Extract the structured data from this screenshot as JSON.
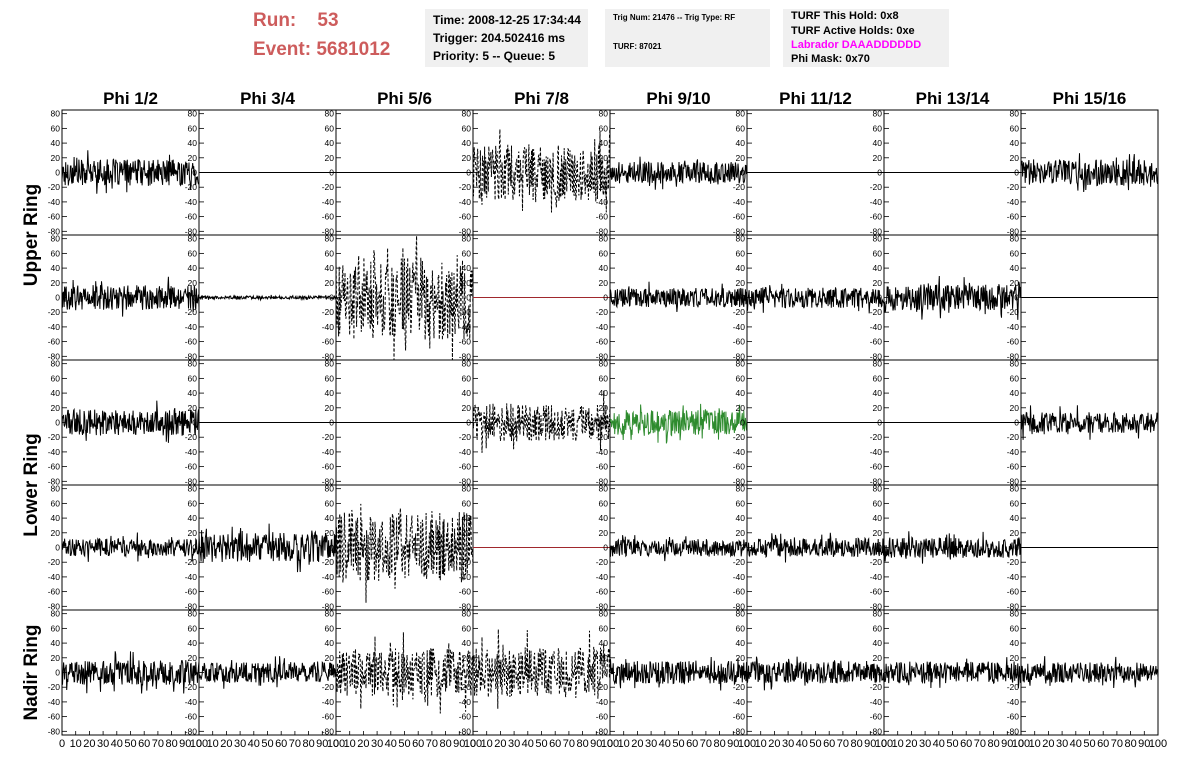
{
  "header": {
    "run_label": "Run:",
    "run_value": "53",
    "event_label": "Event:",
    "event_value": "5681012",
    "run_color": "#cd5c5c"
  },
  "info_time": {
    "time": "Time: 2008-12-25 17:34:44",
    "trigger": "Trigger: 204.502416 ms",
    "priority": "Priority: 5 -- Queue: 5"
  },
  "info_trig": {
    "trig": "Trig Num: 21476 -- Trig Type: RF",
    "turf": "TURF: 87021"
  },
  "info_turf": {
    "this_hold": "TURF This Hold: 0x8",
    "active_holds": "TURF Active Holds: 0xe",
    "labrador": "Labrador DAAADDDDDD",
    "labrador_color": "#ff00ff",
    "phi_mask": "Phi Mask: 0x70"
  },
  "chart_data": {
    "type": "line",
    "layout": "grid of 5 rows x 8 columns of waveform panels",
    "columns": [
      "Phi 1/2",
      "Phi 3/4",
      "Phi 5/6",
      "Phi 7/8",
      "Phi 9/10",
      "Phi 11/12",
      "Phi 13/14",
      "Phi 15/16"
    ],
    "ring_labels": [
      {
        "label": "Upper Ring",
        "rows": [
          0,
          1
        ]
      },
      {
        "label": "Lower Ring",
        "rows": [
          2,
          3
        ]
      },
      {
        "label": "Nadir Ring",
        "rows": [
          4
        ]
      }
    ],
    "ylim": [
      -85,
      85
    ],
    "y_ticks": [
      -80,
      -60,
      -40,
      -20,
      0,
      20,
      40,
      60,
      80
    ],
    "xlim": [
      0,
      100
    ],
    "x_ticks": [
      0,
      10,
      20,
      30,
      40,
      50,
      60,
      70,
      80,
      90,
      100
    ],
    "x_tick_labels": [
      "0",
      "10",
      "20",
      "30",
      "40",
      "50",
      "60",
      "70",
      "80",
      "90",
      "100"
    ],
    "colors": {
      "normal": "#000000",
      "flat_red": "#a0282d",
      "highlight_green": "#2e8b2e"
    },
    "panels": [
      {
        "row": 0,
        "col": 0,
        "style": "solid",
        "amplitude": 18,
        "color": "#000000"
      },
      {
        "row": 0,
        "col": 1,
        "style": "flat",
        "amplitude": 0,
        "color": "#000000"
      },
      {
        "row": 0,
        "col": 2,
        "style": "flat",
        "amplitude": 0,
        "color": "#000000"
      },
      {
        "row": 0,
        "col": 3,
        "style": "dashed",
        "amplitude": 38,
        "color": "#000000"
      },
      {
        "row": 0,
        "col": 4,
        "style": "solid",
        "amplitude": 15,
        "color": "#000000"
      },
      {
        "row": 0,
        "col": 5,
        "style": "flat",
        "amplitude": 0,
        "color": "#000000"
      },
      {
        "row": 0,
        "col": 6,
        "style": "flat",
        "amplitude": 0,
        "color": "#000000"
      },
      {
        "row": 0,
        "col": 7,
        "style": "solid",
        "amplitude": 18,
        "color": "#000000"
      },
      {
        "row": 1,
        "col": 0,
        "style": "solid",
        "amplitude": 17,
        "color": "#000000"
      },
      {
        "row": 1,
        "col": 1,
        "style": "solid",
        "amplitude": 2,
        "color": "#000000"
      },
      {
        "row": 1,
        "col": 2,
        "style": "dashed",
        "amplitude": 58,
        "color": "#000000"
      },
      {
        "row": 1,
        "col": 3,
        "style": "flat",
        "amplitude": 0,
        "color": "#a0282d"
      },
      {
        "row": 1,
        "col": 4,
        "style": "solid",
        "amplitude": 13,
        "color": "#000000"
      },
      {
        "row": 1,
        "col": 5,
        "style": "solid",
        "amplitude": 14,
        "color": "#000000"
      },
      {
        "row": 1,
        "col": 6,
        "style": "solid",
        "amplitude": 18,
        "color": "#000000"
      },
      {
        "row": 1,
        "col": 7,
        "style": "flat",
        "amplitude": 0,
        "color": "#000000"
      },
      {
        "row": 2,
        "col": 0,
        "style": "solid",
        "amplitude": 18,
        "color": "#000000"
      },
      {
        "row": 2,
        "col": 1,
        "style": "flat",
        "amplitude": 0,
        "color": "#000000"
      },
      {
        "row": 2,
        "col": 2,
        "style": "flat",
        "amplitude": 0,
        "color": "#000000"
      },
      {
        "row": 2,
        "col": 3,
        "style": "dashed",
        "amplitude": 26,
        "color": "#000000"
      },
      {
        "row": 2,
        "col": 4,
        "style": "solid",
        "amplitude": 17,
        "color": "#2e8b2e"
      },
      {
        "row": 2,
        "col": 5,
        "style": "flat",
        "amplitude": 0,
        "color": "#000000"
      },
      {
        "row": 2,
        "col": 6,
        "style": "flat",
        "amplitude": 0,
        "color": "#000000"
      },
      {
        "row": 2,
        "col": 7,
        "style": "solid",
        "amplitude": 14,
        "color": "#000000"
      },
      {
        "row": 3,
        "col": 0,
        "style": "solid",
        "amplitude": 12,
        "color": "#000000"
      },
      {
        "row": 3,
        "col": 1,
        "style": "solid",
        "amplitude": 20,
        "color": "#000000"
      },
      {
        "row": 3,
        "col": 2,
        "style": "dashed",
        "amplitude": 48,
        "color": "#000000"
      },
      {
        "row": 3,
        "col": 3,
        "style": "flat",
        "amplitude": 0,
        "color": "#a0282d"
      },
      {
        "row": 3,
        "col": 4,
        "style": "solid",
        "amplitude": 12,
        "color": "#000000"
      },
      {
        "row": 3,
        "col": 5,
        "style": "solid",
        "amplitude": 13,
        "color": "#000000"
      },
      {
        "row": 3,
        "col": 6,
        "style": "solid",
        "amplitude": 14,
        "color": "#000000"
      },
      {
        "row": 3,
        "col": 7,
        "style": "flat",
        "amplitude": 0,
        "color": "#000000"
      },
      {
        "row": 4,
        "col": 0,
        "style": "solid",
        "amplitude": 17,
        "color": "#000000"
      },
      {
        "row": 4,
        "col": 1,
        "style": "solid",
        "amplitude": 14,
        "color": "#000000"
      },
      {
        "row": 4,
        "col": 2,
        "style": "dashed",
        "amplitude": 33,
        "color": "#000000"
      },
      {
        "row": 4,
        "col": 3,
        "style": "dashed",
        "amplitude": 35,
        "color": "#000000"
      },
      {
        "row": 4,
        "col": 4,
        "style": "solid",
        "amplitude": 16,
        "color": "#000000"
      },
      {
        "row": 4,
        "col": 5,
        "style": "solid",
        "amplitude": 15,
        "color": "#000000"
      },
      {
        "row": 4,
        "col": 6,
        "style": "solid",
        "amplitude": 15,
        "color": "#000000"
      },
      {
        "row": 4,
        "col": 7,
        "style": "solid",
        "amplitude": 14,
        "color": "#000000"
      }
    ]
  }
}
